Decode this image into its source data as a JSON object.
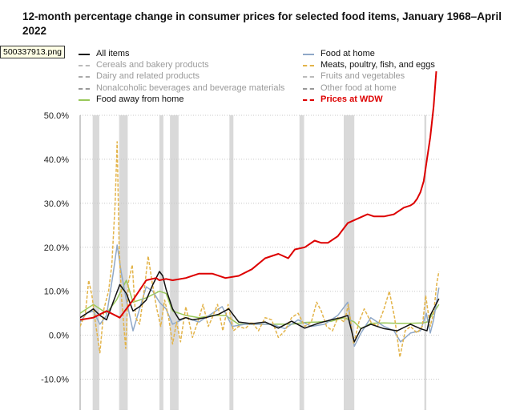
{
  "file_label": "500337913.png",
  "chart_data": {
    "type": "line",
    "title": "12-month percentage change in consumer prices for selected food items, January 1968–April 2022",
    "xlabel": "",
    "ylabel": "",
    "x_range": [
      "1968-01",
      "2022-04"
    ],
    "ylim": [
      -17,
      50
    ],
    "y_ticks": [
      -10,
      0,
      10,
      20,
      30,
      40,
      50
    ],
    "y_tick_labels": [
      "-10.0%",
      "0.0%",
      "10.0%",
      "20.0%",
      "30.0%",
      "40.0%",
      "50.0%"
    ],
    "grid": "horizontal dotted",
    "legend_position": "top",
    "recession_shading": [
      [
        1969.9,
        1970.9
      ],
      [
        1973.9,
        1975.2
      ],
      [
        1980.0,
        1980.6
      ],
      [
        1981.6,
        1982.9
      ],
      [
        1990.6,
        1991.2
      ],
      [
        2001.2,
        2001.9
      ],
      [
        2007.9,
        2009.5
      ],
      [
        2020.1,
        2020.4
      ]
    ],
    "legend": [
      {
        "label": "All items",
        "color": "#111111",
        "dash": "solid"
      },
      {
        "label": "Cereals and bakery products",
        "color": "#bbbbbb",
        "dash": "dashed"
      },
      {
        "label": "Dairy and related products",
        "color": "#aaaaaa",
        "dash": "dashed"
      },
      {
        "label": "Nonalcoholic beverages and beverage materials",
        "color": "#999999",
        "dash": "dashed"
      },
      {
        "label": "Food away from home",
        "color": "#99c85a",
        "dash": "solid"
      },
      {
        "label": "Food at home",
        "color": "#8fa8c8",
        "dash": "solid"
      },
      {
        "label": "Meats, poultry, fish, and eggs",
        "color": "#e3b44a",
        "dash": "dashed"
      },
      {
        "label": "Fruits and vegetables",
        "color": "#bbbbbb",
        "dash": "dashed"
      },
      {
        "label": "Other food at home",
        "color": "#999999",
        "dash": "dashed"
      },
      {
        "label": "Prices at WDW",
        "color": "#dd0000",
        "dash": "solid"
      }
    ],
    "series": [
      {
        "name": "Prices at WDW",
        "color": "#dd0000",
        "x": [
          1968.0,
          1970.0,
          1972.0,
          1974.0,
          1976.0,
          1978.0,
          1979.5,
          1980.0,
          1981.0,
          1982.0,
          1984.0,
          1986.0,
          1988.0,
          1990.0,
          1992.0,
          1994.0,
          1996.0,
          1998.0,
          1999.5,
          2000.5,
          2002.0,
          2003.5,
          2004.5,
          2005.5,
          2007.0,
          2008.5,
          2010.0,
          2011.5,
          2012.5,
          2014.0,
          2015.5,
          2017.0,
          2018.0,
          2018.5,
          2019.0,
          2019.5,
          2020.0,
          2020.5,
          2021.0,
          2021.5,
          2021.9
        ],
        "y": [
          3.5,
          4.0,
          5.5,
          4.0,
          8.0,
          12.5,
          13.0,
          12.5,
          12.8,
          12.5,
          13.0,
          14.0,
          14.0,
          13.0,
          13.5,
          15.0,
          17.5,
          18.5,
          17.5,
          19.5,
          20.0,
          21.5,
          21.0,
          21.0,
          22.5,
          25.5,
          26.5,
          27.5,
          27.0,
          27.0,
          27.5,
          29.0,
          29.5,
          30.0,
          31.0,
          32.5,
          35.0,
          40.0,
          45.0,
          52.0,
          60.0
        ]
      },
      {
        "name": "All items",
        "color": "#111111",
        "x": [
          1968.0,
          1969.0,
          1970.0,
          1971.0,
          1972.0,
          1973.0,
          1974.0,
          1975.0,
          1976.0,
          1977.0,
          1978.0,
          1979.0,
          1980.0,
          1980.5,
          1981.0,
          1982.0,
          1983.0,
          1984.0,
          1985.0,
          1987.0,
          1989.0,
          1990.5,
          1992.0,
          1994.0,
          1996.0,
          1998.0,
          2000.0,
          2002.0,
          2004.0,
          2006.0,
          2007.5,
          2008.5,
          2009.5,
          2010.5,
          2012.0,
          2014.0,
          2016.0,
          2018.0,
          2019.5,
          2020.5,
          2021.0,
          2021.5,
          2022.3
        ],
        "y": [
          4.0,
          5.0,
          6.0,
          4.5,
          3.5,
          7.5,
          11.5,
          9.5,
          5.5,
          6.5,
          8.0,
          11.5,
          14.5,
          13.5,
          10.5,
          6.0,
          3.5,
          4.0,
          3.5,
          4.0,
          4.8,
          6.0,
          3.0,
          2.6,
          3.0,
          1.6,
          3.2,
          1.6,
          2.7,
          3.5,
          4.0,
          4.5,
          -1.5,
          1.5,
          2.5,
          1.5,
          1.0,
          2.5,
          1.5,
          1.0,
          4.5,
          6.0,
          8.3
        ]
      },
      {
        "name": "Food at home",
        "color": "#8fa8c8",
        "x": [
          1968.0,
          1969.0,
          1970.0,
          1971.0,
          1972.0,
          1973.0,
          1973.6,
          1974.2,
          1975.0,
          1976.0,
          1977.0,
          1978.0,
          1979.0,
          1980.0,
          1981.0,
          1982.0,
          1984.0,
          1986.0,
          1988.0,
          1989.5,
          1991.0,
          1993.0,
          1995.0,
          1997.0,
          1999.0,
          2001.0,
          2003.0,
          2005.0,
          2007.0,
          2008.5,
          2009.5,
          2010.5,
          2012.0,
          2014.0,
          2015.5,
          2016.5,
          2018.0,
          2019.5,
          2020.4,
          2021.0,
          2021.5,
          2022.3
        ],
        "y": [
          3.0,
          5.0,
          5.5,
          2.5,
          4.5,
          14.0,
          20.5,
          14.5,
          8.0,
          1.0,
          6.0,
          11.0,
          10.0,
          7.5,
          6.0,
          2.5,
          4.0,
          3.0,
          5.0,
          6.5,
          2.0,
          2.5,
          2.5,
          2.5,
          1.5,
          3.5,
          2.0,
          2.5,
          4.5,
          7.5,
          -2.5,
          0.5,
          4.0,
          2.0,
          1.0,
          -1.5,
          0.5,
          1.0,
          5.0,
          0.5,
          3.5,
          10.8
        ]
      },
      {
        "name": "Food away from home",
        "color": "#99c85a",
        "x": [
          1968.0,
          1970.0,
          1972.0,
          1973.5,
          1975.0,
          1976.0,
          1978.0,
          1980.0,
          1981.0,
          1982.0,
          1984.0,
          1986.0,
          1988.0,
          1990.0,
          1992.0,
          1994.0,
          1996.0,
          1998.0,
          2000.0,
          2002.0,
          2004.0,
          2006.0,
          2008.0,
          2009.5,
          2010.5,
          2012.0,
          2014.0,
          2016.0,
          2018.0,
          2020.0,
          2020.5,
          2021.0,
          2022.3
        ],
        "y": [
          5.0,
          7.0,
          5.0,
          8.0,
          12.5,
          7.5,
          8.5,
          10.0,
          9.5,
          5.5,
          4.5,
          4.0,
          4.5,
          4.5,
          2.5,
          2.5,
          2.5,
          2.5,
          2.5,
          2.9,
          3.0,
          3.2,
          4.0,
          3.0,
          1.5,
          2.7,
          2.8,
          2.7,
          2.7,
          2.8,
          3.0,
          4.0,
          7.0
        ]
      },
      {
        "name": "Meats, poultry, fish, and eggs",
        "color": "#e3b44a",
        "dashed": true,
        "x": [
          1968.0,
          1968.8,
          1969.3,
          1969.8,
          1970.3,
          1971.0,
          1971.6,
          1972.3,
          1972.8,
          1973.3,
          1973.6,
          1973.9,
          1974.3,
          1974.9,
          1975.3,
          1975.9,
          1976.4,
          1977.0,
          1977.6,
          1978.3,
          1978.9,
          1979.6,
          1980.2,
          1980.8,
          1981.4,
          1982.0,
          1982.6,
          1983.2,
          1984.0,
          1985.0,
          1985.8,
          1986.6,
          1987.4,
          1988.0,
          1988.8,
          1989.6,
          1990.4,
          1991.2,
          1992.0,
          1993.0,
          1994.0,
          1995.0,
          1996.0,
          1997.0,
          1998.0,
          1999.0,
          2000.0,
          2001.0,
          2002.0,
          2003.0,
          2003.8,
          2004.5,
          2005.3,
          2006.2,
          2007.0,
          2008.0,
          2008.6,
          2009.4,
          2010.2,
          2011.0,
          2012.0,
          2013.0,
          2014.0,
          2014.8,
          2015.6,
          2016.4,
          2017.2,
          2018.0,
          2019.0,
          2019.8,
          2020.3,
          2020.6,
          2021.0,
          2021.5,
          2022.0,
          2022.3
        ],
        "y": [
          2.0,
          5.0,
          12.5,
          9.0,
          3.0,
          -4.0,
          6.0,
          10.0,
          16.0,
          30.0,
          44.0,
          20.0,
          8.0,
          -3.0,
          12.0,
          16.0,
          4.0,
          2.5,
          9.0,
          18.0,
          12.0,
          6.0,
          2.0,
          8.0,
          4.0,
          -2.0,
          3.0,
          -1.5,
          6.5,
          -0.5,
          3.0,
          7.0,
          2.0,
          4.0,
          7.0,
          1.0,
          7.0,
          1.0,
          2.0,
          1.5,
          3.0,
          1.0,
          4.0,
          3.5,
          -0.5,
          1.0,
          4.0,
          5.0,
          2.0,
          3.0,
          7.5,
          5.5,
          2.0,
          1.0,
          4.0,
          3.0,
          7.0,
          -2.0,
          3.0,
          6.0,
          3.0,
          2.0,
          6.0,
          10.0,
          4.0,
          -5.0,
          1.0,
          2.0,
          0.5,
          2.0,
          9.0,
          6.0,
          2.0,
          5.0,
          12.0,
          14.5
        ]
      }
    ]
  }
}
